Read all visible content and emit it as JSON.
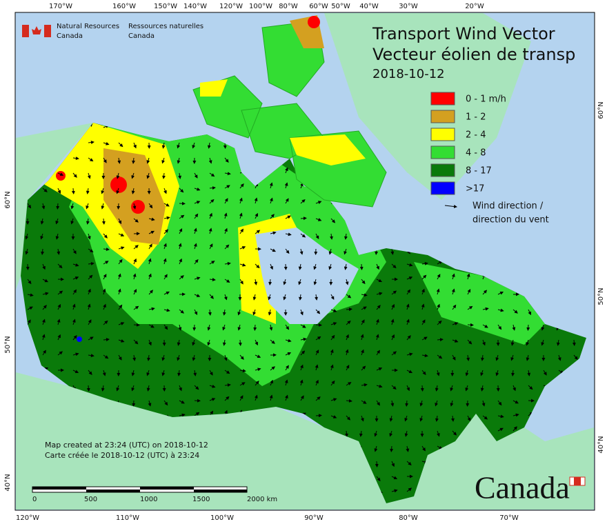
{
  "header": {
    "agency_en": [
      "Natural Resources",
      "Canada"
    ],
    "agency_fr": [
      "Ressources naturelles",
      "Canada"
    ]
  },
  "title": [
    "Transport Wind Vector",
    "Vecteur éolien de transp"
  ],
  "date": "2018-10-12",
  "legend": [
    {
      "label": "0 - 1 m/h",
      "color": "#ff0000"
    },
    {
      "label": "1 - 2",
      "color": "#d4a020"
    },
    {
      "label": "2 - 4",
      "color": "#ffff00"
    },
    {
      "label": "4 - 8",
      "color": "#33dd33"
    },
    {
      "label": "8 - 17",
      "color": "#0a7a0a"
    },
    {
      "label": ">17",
      "color": "#0000ff"
    }
  ],
  "wind_direction": [
    "Wind direction /",
    "direction du vent"
  ],
  "notes": [
    "Map created at 23:24 (UTC) on 2018-10-12",
    "Carte créée le 2018-10-12 (UTC) à 23:24"
  ],
  "scale": [
    "0",
    "500",
    "1000",
    "1500",
    "2000 km"
  ],
  "graticule": {
    "top": [
      "170°W",
      "160°W",
      "150°W",
      "140°W",
      "120°W",
      "100°W",
      "80°W",
      "60°W",
      "50°W",
      "40°W",
      "30°W",
      "20°W"
    ],
    "bottom": [
      "120°W",
      "110°W",
      "100°W",
      "90°W",
      "80°W",
      "70°W"
    ],
    "left": [
      "60°N",
      "50°N",
      "40°N"
    ],
    "right": [
      "60°N",
      "50°N",
      "40°N"
    ]
  },
  "wordmark": "Canada"
}
